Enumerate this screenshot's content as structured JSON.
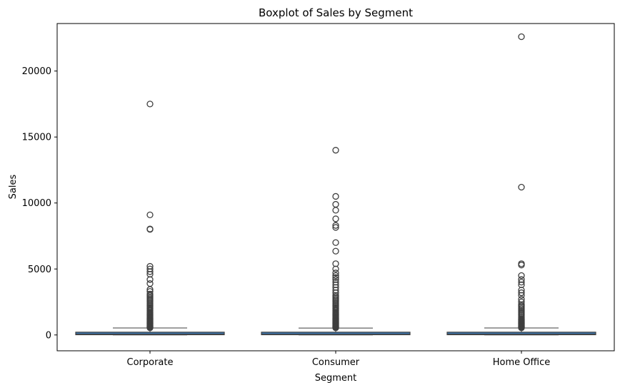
{
  "chart_data": {
    "type": "box",
    "title": "Boxplot of Sales by Segment",
    "xlabel": "Segment",
    "ylabel": "Sales",
    "ylim": [
      -1200,
      23600
    ],
    "yticks": [
      0,
      5000,
      10000,
      15000,
      20000
    ],
    "grid": false,
    "legend": "none",
    "colors": {
      "box_fill": "#3b75af",
      "line": "#3f3f3f",
      "axis": "#000000"
    },
    "categories": [
      "Corporate",
      "Consumer",
      "Home Office"
    ],
    "boxes": [
      {
        "category": "Corporate",
        "min": 0.6,
        "q1": 17,
        "median": 55,
        "q3": 210,
        "whisker_high": 530,
        "outliers": [
          540,
          580,
          620,
          660,
          700,
          750,
          800,
          850,
          900,
          950,
          1000,
          1050,
          1100,
          1150,
          1200,
          1260,
          1320,
          1380,
          1440,
          1500,
          1560,
          1620,
          1700,
          1780,
          1860,
          1940,
          2020,
          2100,
          2200,
          2300,
          2400,
          2500,
          2600,
          2700,
          2800,
          2900,
          3000,
          3100,
          3300,
          3450,
          3900,
          4200,
          4600,
          4800,
          5000,
          5200,
          8000,
          8030,
          9100,
          17500
        ]
      },
      {
        "category": "Consumer",
        "min": 0.4,
        "q1": 17,
        "median": 53,
        "q3": 210,
        "whisker_high": 520,
        "outliers": [
          540,
          580,
          620,
          660,
          700,
          750,
          800,
          850,
          900,
          950,
          1000,
          1050,
          1100,
          1150,
          1200,
          1260,
          1320,
          1380,
          1440,
          1500,
          1560,
          1620,
          1700,
          1780,
          1860,
          1940,
          2020,
          2100,
          2200,
          2300,
          2400,
          2500,
          2600,
          2700,
          2800,
          2900,
          3000,
          3200,
          3400,
          3600,
          3800,
          4000,
          4200,
          4350,
          4500,
          4700,
          5000,
          5400,
          6350,
          7000,
          8150,
          8300,
          8800,
          9450,
          9900,
          10500,
          14000
        ]
      },
      {
        "category": "Home Office",
        "min": 0.9,
        "q1": 17,
        "median": 55,
        "q3": 210,
        "whisker_high": 530,
        "outliers": [
          540,
          580,
          620,
          660,
          700,
          750,
          800,
          850,
          900,
          950,
          1000,
          1050,
          1100,
          1150,
          1200,
          1300,
          1400,
          1500,
          1600,
          1700,
          1800,
          1900,
          2000,
          2100,
          2200,
          2300,
          2500,
          2700,
          3000,
          3200,
          3400,
          3800,
          4000,
          4200,
          4500,
          5300,
          5400,
          11200,
          22600
        ]
      }
    ]
  }
}
